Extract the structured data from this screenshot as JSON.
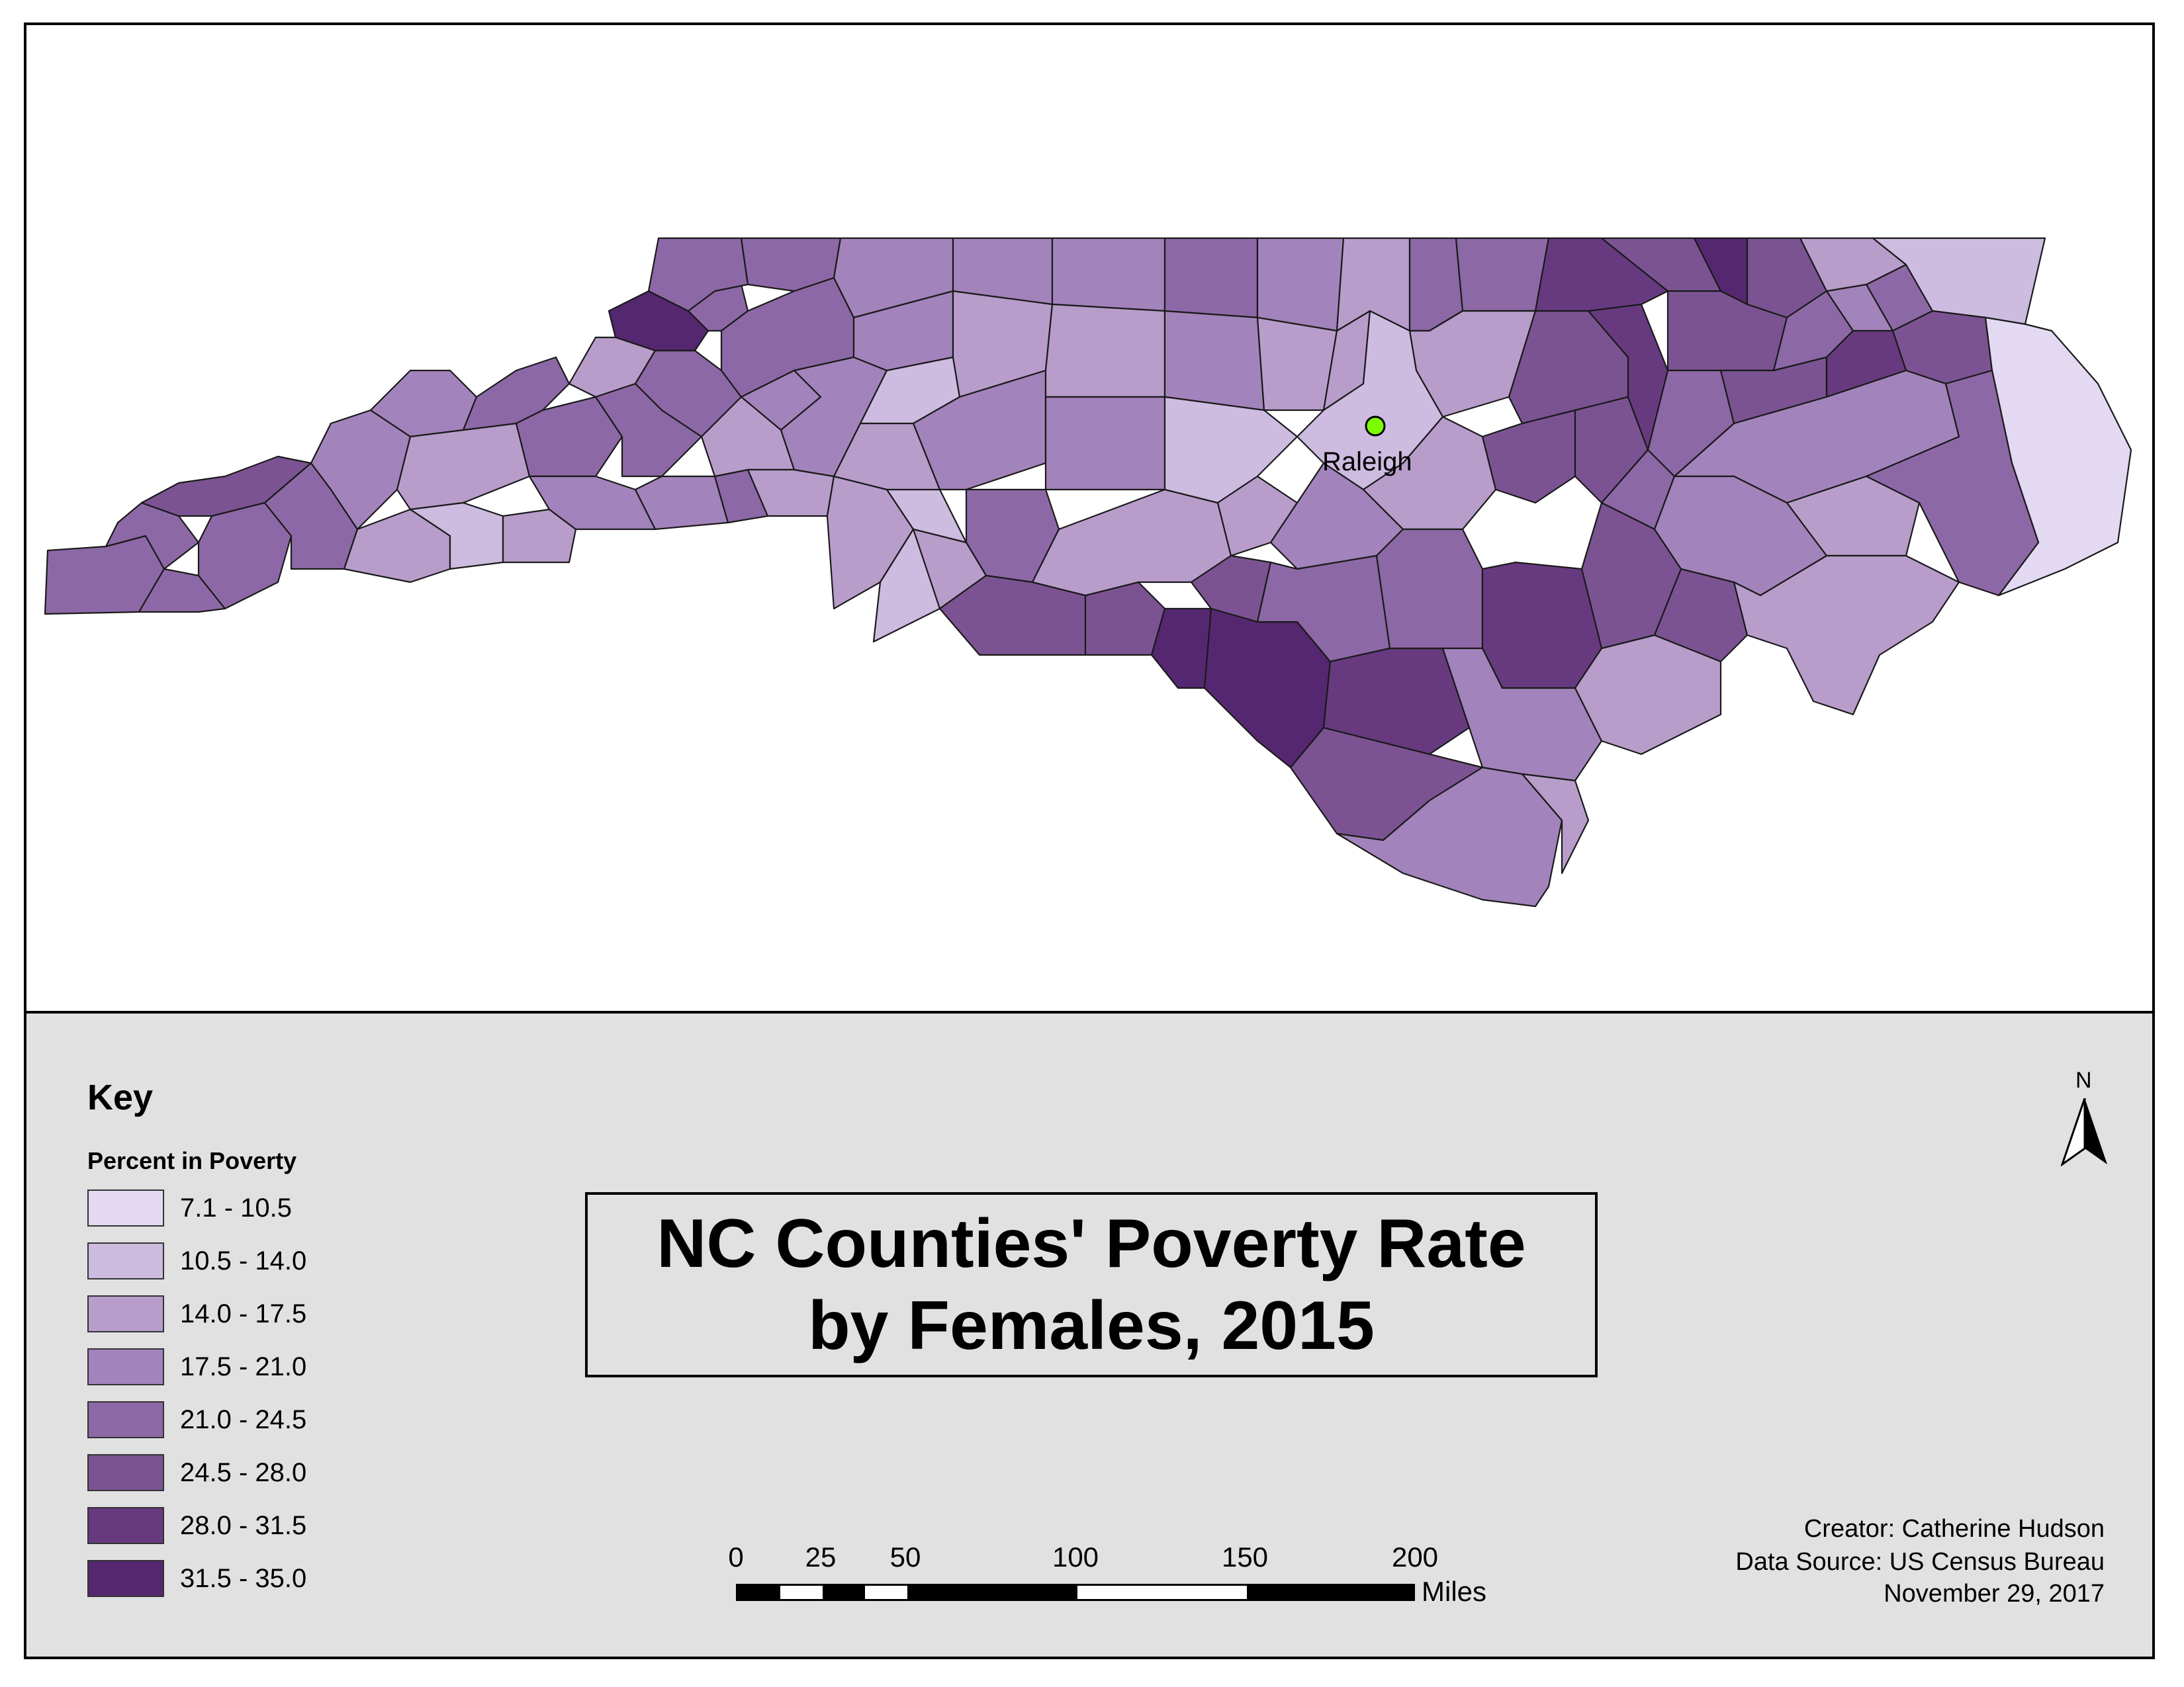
{
  "map": {
    "city": {
      "name": "Raleigh",
      "marker_color": "#7CFC00"
    },
    "counties": [
      {
        "id": "mitchell",
        "class": 8
      },
      {
        "id": "ashe",
        "class": 5
      },
      {
        "id": "alleghany",
        "class": 5
      },
      {
        "id": "surry",
        "class": 4
      },
      {
        "id": "stokes",
        "class": 4
      },
      {
        "id": "rockingham",
        "class": 4
      },
      {
        "id": "caswell",
        "class": 5
      },
      {
        "id": "person",
        "class": 4
      },
      {
        "id": "granville",
        "class": 3
      },
      {
        "id": "vance",
        "class": 5
      },
      {
        "id": "warren",
        "class": 5
      },
      {
        "id": "northampton",
        "class": 6
      },
      {
        "id": "hertford",
        "class": 8
      },
      {
        "id": "gates",
        "class": 6
      },
      {
        "id": "camden",
        "class": 3
      },
      {
        "id": "currituck",
        "class": 2
      },
      {
        "id": "wake",
        "class": 2
      },
      {
        "id": "dare",
        "class": 1
      },
      {
        "id": "brunswick",
        "class": 4
      },
      {
        "id": "robeson",
        "class": 8
      },
      {
        "id": "columbus",
        "class": 6
      },
      {
        "id": "cumberland",
        "class": 5
      },
      {
        "id": "union",
        "class": 2
      },
      {
        "id": "mecklenburg",
        "class": 3
      },
      {
        "id": "cherokee",
        "class": 5
      },
      {
        "id": "swain",
        "class": 6
      }
    ]
  },
  "legend": {
    "title": "Key",
    "subtitle": "Percent in Poverty",
    "classes": [
      {
        "label": "7.1 - 10.5",
        "color": "#e3d9f2"
      },
      {
        "label": "10.5 - 14.0",
        "color": "#cdbbe0"
      },
      {
        "label": "14.0 - 17.5",
        "color": "#b89dcb"
      },
      {
        "label": "17.5 - 21.0",
        "color": "#a383bb"
      },
      {
        "label": "21.0 - 24.5",
        "color": "#8d68a6"
      },
      {
        "label": "24.5 - 28.0",
        "color": "#7b5392"
      },
      {
        "label": "28.0 - 31.5",
        "color": "#673a80"
      },
      {
        "label": "31.5 - 35.0",
        "color": "#552770"
      }
    ]
  },
  "title": {
    "line1": "NC Counties' Poverty Rate",
    "line2": "by Females, 2015"
  },
  "scale": {
    "ticks": [
      "0",
      "25",
      "50",
      "100",
      "150",
      "200"
    ],
    "unit": "Miles"
  },
  "north": {
    "label": "N"
  },
  "credits": {
    "creator": "Creator: Catherine Hudson",
    "source": "Data Source: US Census Bureau",
    "date": "November 29, 2017"
  }
}
